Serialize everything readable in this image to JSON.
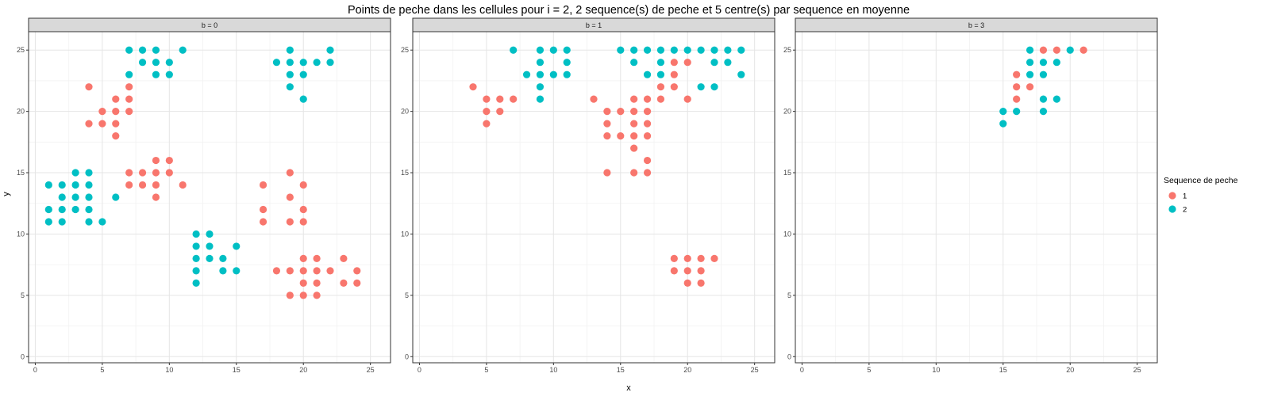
{
  "chart_data": {
    "type": "scatter",
    "title": "Points de peche dans les cellules pour i = 2, 2 sequence(s) de peche et 5 centre(s) par sequence en moyenne",
    "xlabel": "x",
    "ylabel": "y",
    "xlim": [
      -0.5,
      26.5
    ],
    "ylim": [
      -0.5,
      26.5
    ],
    "x_ticks": [
      0,
      5,
      10,
      15,
      20,
      25
    ],
    "y_ticks": [
      0,
      5,
      10,
      15,
      20,
      25
    ],
    "grid": true,
    "legend": {
      "title": "Sequence de peche",
      "position": "right",
      "entries": [
        {
          "label": "1",
          "color": "#F8766D"
        },
        {
          "label": "2",
          "color": "#00BFC4"
        }
      ]
    },
    "panels": [
      {
        "strip_label": "b = 0",
        "series": [
          {
            "name": "1",
            "color": "#F8766D",
            "points": [
              [
                4,
                22
              ],
              [
                5,
                20
              ],
              [
                6,
                21
              ],
              [
                7,
                22
              ],
              [
                7,
                21
              ],
              [
                7,
                20
              ],
              [
                4,
                19
              ],
              [
                5,
                19
              ],
              [
                6,
                20
              ],
              [
                6,
                19
              ],
              [
                6,
                18
              ],
              [
                7,
                15
              ],
              [
                8,
                15
              ],
              [
                9,
                16
              ],
              [
                10,
                16
              ],
              [
                9,
                15
              ],
              [
                10,
                15
              ],
              [
                7,
                14
              ],
              [
                8,
                14
              ],
              [
                9,
                14
              ],
              [
                9,
                13
              ],
              [
                11,
                14
              ],
              [
                17,
                14
              ],
              [
                19,
                15
              ],
              [
                19,
                13
              ],
              [
                20,
                14
              ],
              [
                17,
                12
              ],
              [
                20,
                12
              ],
              [
                17,
                11
              ],
              [
                19,
                11
              ],
              [
                20,
                11
              ],
              [
                18,
                7
              ],
              [
                19,
                7
              ],
              [
                20,
                8
              ],
              [
                21,
                8
              ],
              [
                23,
                8
              ],
              [
                20,
                7
              ],
              [
                21,
                7
              ],
              [
                22,
                7
              ],
              [
                24,
                7
              ],
              [
                20,
                6
              ],
              [
                21,
                6
              ],
              [
                23,
                6
              ],
              [
                24,
                6
              ],
              [
                19,
                5
              ],
              [
                20,
                5
              ],
              [
                21,
                5
              ]
            ]
          },
          {
            "name": "2",
            "color": "#00BFC4",
            "points": [
              [
                7,
                25
              ],
              [
                8,
                25
              ],
              [
                9,
                25
              ],
              [
                11,
                25
              ],
              [
                8,
                24
              ],
              [
                9,
                24
              ],
              [
                10,
                24
              ],
              [
                7,
                23
              ],
              [
                9,
                23
              ],
              [
                10,
                23
              ],
              [
                18,
                24
              ],
              [
                19,
                25
              ],
              [
                22,
                25
              ],
              [
                19,
                24
              ],
              [
                20,
                24
              ],
              [
                21,
                24
              ],
              [
                22,
                24
              ],
              [
                19,
                23
              ],
              [
                20,
                23
              ],
              [
                19,
                22
              ],
              [
                20,
                21
              ],
              [
                1,
                14
              ],
              [
                2,
                14
              ],
              [
                3,
                15
              ],
              [
                4,
                15
              ],
              [
                3,
                14
              ],
              [
                4,
                14
              ],
              [
                2,
                13
              ],
              [
                3,
                13
              ],
              [
                4,
                13
              ],
              [
                6,
                13
              ],
              [
                1,
                12
              ],
              [
                2,
                12
              ],
              [
                3,
                12
              ],
              [
                4,
                12
              ],
              [
                1,
                11
              ],
              [
                2,
                11
              ],
              [
                4,
                11
              ],
              [
                5,
                11
              ],
              [
                12,
                10
              ],
              [
                13,
                10
              ],
              [
                12,
                9
              ],
              [
                13,
                9
              ],
              [
                15,
                9
              ],
              [
                12,
                8
              ],
              [
                13,
                8
              ],
              [
                14,
                8
              ],
              [
                12,
                7
              ],
              [
                14,
                7
              ],
              [
                15,
                7
              ],
              [
                12,
                6
              ]
            ]
          }
        ]
      },
      {
        "strip_label": "b = 1",
        "series": [
          {
            "name": "1",
            "color": "#F8766D",
            "points": [
              [
                4,
                22
              ],
              [
                5,
                21
              ],
              [
                6,
                21
              ],
              [
                7,
                21
              ],
              [
                5,
                20
              ],
              [
                6,
                20
              ],
              [
                5,
                19
              ],
              [
                13,
                21
              ],
              [
                16,
                21
              ],
              [
                17,
                21
              ],
              [
                18,
                21
              ],
              [
                14,
                20
              ],
              [
                15,
                20
              ],
              [
                16,
                20
              ],
              [
                17,
                20
              ],
              [
                14,
                19
              ],
              [
                16,
                19
              ],
              [
                17,
                19
              ],
              [
                14,
                18
              ],
              [
                15,
                18
              ],
              [
                16,
                18
              ],
              [
                17,
                18
              ],
              [
                16,
                17
              ],
              [
                17,
                16
              ],
              [
                14,
                15
              ],
              [
                16,
                15
              ],
              [
                17,
                15
              ],
              [
                19,
                24
              ],
              [
                20,
                24
              ],
              [
                19,
                23
              ],
              [
                18,
                22
              ],
              [
                19,
                22
              ],
              [
                20,
                21
              ],
              [
                19,
                8
              ],
              [
                20,
                8
              ],
              [
                21,
                8
              ],
              [
                22,
                8
              ],
              [
                19,
                7
              ],
              [
                20,
                7
              ],
              [
                21,
                7
              ],
              [
                20,
                6
              ],
              [
                21,
                6
              ]
            ]
          },
          {
            "name": "2",
            "color": "#00BFC4",
            "points": [
              [
                7,
                25
              ],
              [
                9,
                25
              ],
              [
                10,
                25
              ],
              [
                11,
                25
              ],
              [
                9,
                24
              ],
              [
                11,
                24
              ],
              [
                8,
                23
              ],
              [
                9,
                23
              ],
              [
                10,
                23
              ],
              [
                11,
                23
              ],
              [
                9,
                22
              ],
              [
                9,
                21
              ],
              [
                15,
                25
              ],
              [
                16,
                25
              ],
              [
                17,
                25
              ],
              [
                18,
                25
              ],
              [
                19,
                25
              ],
              [
                20,
                25
              ],
              [
                21,
                25
              ],
              [
                22,
                25
              ],
              [
                23,
                25
              ],
              [
                24,
                25
              ],
              [
                16,
                24
              ],
              [
                18,
                24
              ],
              [
                22,
                24
              ],
              [
                23,
                24
              ],
              [
                17,
                23
              ],
              [
                18,
                23
              ],
              [
                24,
                23
              ],
              [
                21,
                22
              ],
              [
                22,
                22
              ]
            ]
          }
        ]
      },
      {
        "strip_label": "b = 3",
        "series": [
          {
            "name": "1",
            "color": "#F8766D",
            "points": [
              [
                18,
                25
              ],
              [
                19,
                25
              ],
              [
                21,
                25
              ],
              [
                16,
                23
              ],
              [
                16,
                22
              ],
              [
                17,
                22
              ],
              [
                16,
                21
              ]
            ]
          },
          {
            "name": "2",
            "color": "#00BFC4",
            "points": [
              [
                17,
                25
              ],
              [
                20,
                25
              ],
              [
                17,
                24
              ],
              [
                18,
                24
              ],
              [
                19,
                24
              ],
              [
                17,
                23
              ],
              [
                18,
                23
              ],
              [
                18,
                21
              ],
              [
                19,
                21
              ],
              [
                15,
                20
              ],
              [
                16,
                20
              ],
              [
                18,
                20
              ],
              [
                15,
                19
              ]
            ]
          }
        ]
      }
    ]
  }
}
